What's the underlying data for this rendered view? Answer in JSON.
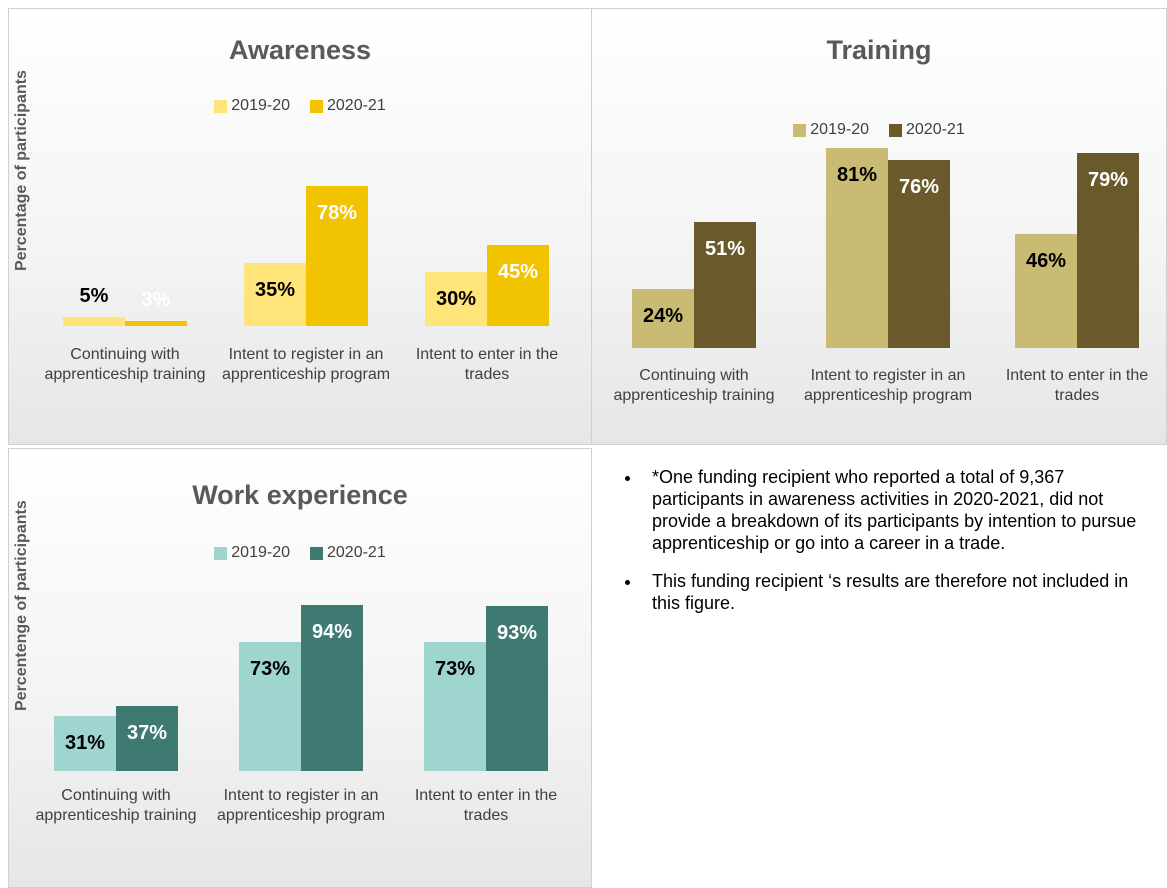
{
  "chart_data": [
    {
      "type": "bar",
      "title": "Awareness",
      "ylabel": "Percentage of participants",
      "categories": [
        "Continuing with apprenticeship training",
        "Intent to register in an apprenticeship program",
        "Intent to enter in the trades"
      ],
      "ylim": [
        0,
        100
      ],
      "series": [
        {
          "name": "2019-20",
          "color": "#ffe47a",
          "label_color": "#000000",
          "values": [
            5,
            35,
            30
          ],
          "value_labels": [
            "5%",
            "35%",
            "30%"
          ]
        },
        {
          "name": "2020-21",
          "color": "#f2c300",
          "label_color": "#ffffff",
          "values": [
            3,
            78,
            45
          ],
          "value_labels": [
            "3%",
            "78%",
            "45%"
          ]
        }
      ]
    },
    {
      "type": "bar",
      "title": "Training",
      "categories": [
        "Continuing with apprenticeship training",
        "Intent to register in an apprenticeship program",
        "Intent to enter in the trades"
      ],
      "ylim": [
        0,
        100
      ],
      "series": [
        {
          "name": "2019-20",
          "color": "#c9ba74",
          "label_color": "#000000",
          "values": [
            24,
            81,
            46
          ],
          "value_labels": [
            "24%",
            "81%",
            "46%"
          ]
        },
        {
          "name": "2020-21",
          "color": "#6a5a2b",
          "label_color": "#ffffff",
          "values": [
            51,
            76,
            79
          ],
          "value_labels": [
            "51%",
            "76%",
            "79%"
          ]
        }
      ]
    },
    {
      "type": "bar",
      "title": "Work experience",
      "ylabel": "Percentenge of participants",
      "categories": [
        "Continuing with apprenticeship training",
        "Intent to register in an apprenticeship program",
        "Intent to enter in the trades"
      ],
      "ylim": [
        0,
        100
      ],
      "series": [
        {
          "name": "2019-20",
          "color": "#9fd5cf",
          "label_color": "#000000",
          "values": [
            31,
            73,
            73
          ],
          "value_labels": [
            "31%",
            "73%",
            "73%"
          ]
        },
        {
          "name": "2020-21",
          "color": "#3e7a72",
          "label_color": "#ffffff",
          "values": [
            37,
            94,
            93
          ],
          "value_labels": [
            "37%",
            "94%",
            "93%"
          ]
        }
      ]
    }
  ],
  "notes": [
    "*One funding recipient who reported a total of 9,367 participants in awareness activities in 2020-2021, did not provide a breakdown of its participants by intention to pursue apprenticeship or go into a career in a trade.",
    "This funding recipient ‘s results are therefore not included in this figure."
  ]
}
